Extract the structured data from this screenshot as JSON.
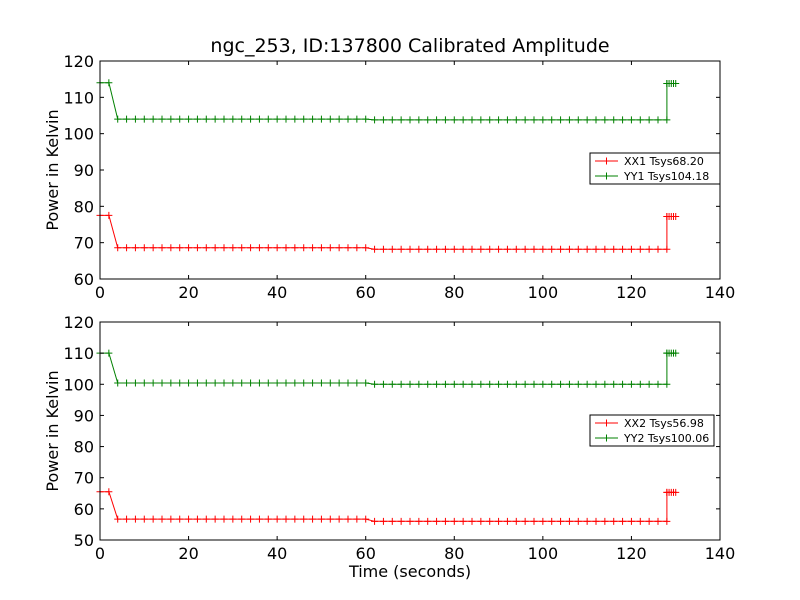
{
  "title": "ngc_253, ID:137800 Calibrated Amplitude",
  "colors": {
    "xx": "#ff0000",
    "yy": "#008000"
  },
  "chart_data": [
    {
      "type": "line",
      "xlabel": "",
      "ylabel": "Power in Kelvin",
      "xlim": [
        0,
        140
      ],
      "ylim": [
        60,
        120
      ],
      "xticks": [
        0,
        20,
        40,
        60,
        80,
        100,
        120,
        140
      ],
      "yticks": [
        60,
        70,
        80,
        90,
        100,
        110,
        120
      ],
      "legend_position": "right",
      "grid": false,
      "series": [
        {
          "name": "XX1 Tsys68.20",
          "color": "#ff0000",
          "marker": "+",
          "segments": [
            {
              "x_start": 0,
              "x_end": 128,
              "value": 68.2,
              "front_value": 77.5,
              "front_count": 2,
              "mid_value": 68.6,
              "mid_until": 62,
              "steps": 64
            },
            {
              "x_start": 128,
              "x_end": 130,
              "value": 77.2
            }
          ]
        },
        {
          "name": "YY1 Tsys104.18",
          "color": "#008000",
          "marker": "+",
          "segments": [
            {
              "x_start": 0,
              "x_end": 128,
              "value": 103.8,
              "front_value": 114.0,
              "front_count": 2,
              "mid_value": 104.0,
              "mid_until": 62,
              "steps": 64
            },
            {
              "x_start": 128,
              "x_end": 130,
              "value": 113.8
            }
          ]
        }
      ]
    },
    {
      "type": "line",
      "xlabel": "Time (seconds)",
      "ylabel": "Power in Kelvin",
      "xlim": [
        0,
        140
      ],
      "ylim": [
        50,
        120
      ],
      "xticks": [
        0,
        20,
        40,
        60,
        80,
        100,
        120,
        140
      ],
      "yticks": [
        50,
        60,
        70,
        80,
        90,
        100,
        110,
        120
      ],
      "legend_position": "right",
      "grid": false,
      "series": [
        {
          "name": "XX2 Tsys56.98",
          "color": "#ff0000",
          "marker": "+",
          "segments": [
            {
              "x_start": 0,
              "x_end": 128,
              "value": 56.0,
              "front_value": 65.5,
              "front_count": 2,
              "mid_value": 56.7,
              "mid_until": 62,
              "steps": 64
            },
            {
              "x_start": 128,
              "x_end": 130,
              "value": 65.3
            }
          ]
        },
        {
          "name": "YY2 Tsys100.06",
          "color": "#008000",
          "marker": "+",
          "segments": [
            {
              "x_start": 0,
              "x_end": 128,
              "value": 100.0,
              "front_value": 110.0,
              "front_count": 2,
              "mid_value": 100.4,
              "mid_until": 62,
              "steps": 64
            },
            {
              "x_start": 128,
              "x_end": 130,
              "value": 110.0
            }
          ]
        }
      ]
    }
  ]
}
